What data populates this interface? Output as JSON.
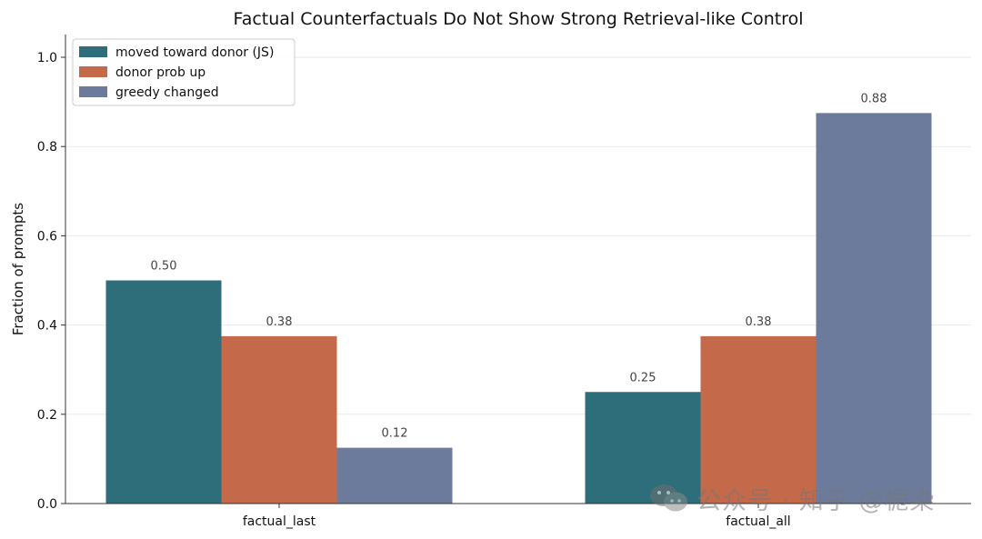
{
  "chart_data": {
    "type": "bar",
    "title": "Factual Counterfactuals Do Not Show Strong Retrieval-like Control",
    "xlabel": "",
    "ylabel": "Fraction of prompts",
    "ylim": [
      0,
      1.05
    ],
    "yticks": [
      0.0,
      0.2,
      0.4,
      0.6,
      0.8,
      1.0
    ],
    "ytick_labels": [
      "0.0",
      "0.2",
      "0.4",
      "0.6",
      "0.8",
      "1.0"
    ],
    "categories": [
      "factual_last",
      "factual_all"
    ],
    "series": [
      {
        "name": "moved toward donor (JS)",
        "color": "#2e6e7a",
        "values": [
          0.5,
          0.25
        ],
        "labels": [
          "0.50",
          "0.25"
        ]
      },
      {
        "name": "donor prob up",
        "color": "#c4694a",
        "values": [
          0.375,
          0.375
        ],
        "labels": [
          "0.38",
          "0.38"
        ]
      },
      {
        "name": "greedy changed",
        "color": "#6c7b9c",
        "values": [
          0.125,
          0.875
        ],
        "labels": [
          "0.12",
          "0.88"
        ]
      }
    ],
    "legend_position": "top-left",
    "grid": true
  },
  "watermark": {
    "text": "公众号 · 知乎 @栀染",
    "icon": "wechat-icon"
  }
}
